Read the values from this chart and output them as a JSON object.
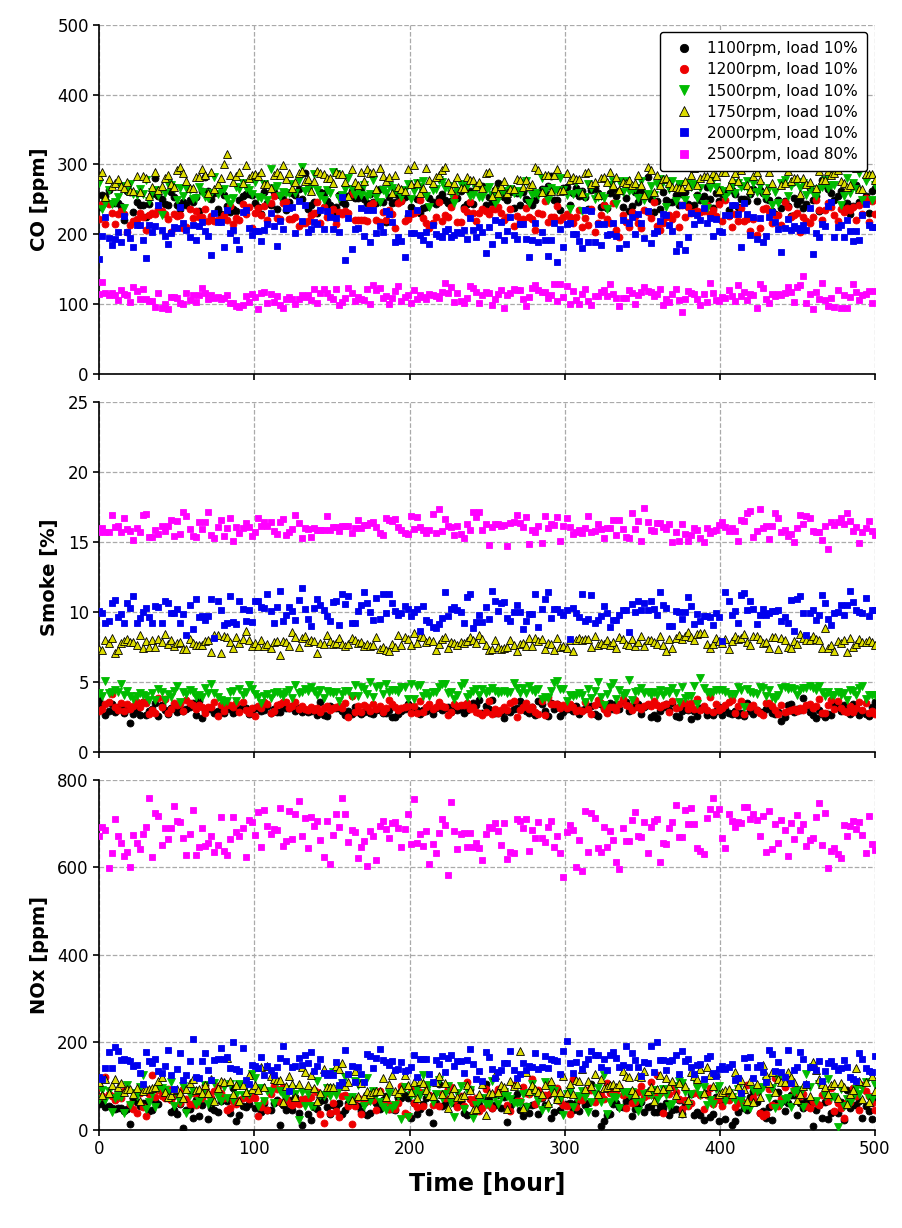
{
  "series": [
    {
      "label": "1100rpm, load 10%",
      "color": "#000000",
      "marker": "o",
      "markersize": 5,
      "CO_mean": 250,
      "CO_std": 12,
      "Smoke_mean": 3.0,
      "Smoke_std": 0.3,
      "NOx_mean": 55,
      "NOx_std": 18
    },
    {
      "label": "1200rpm, load 10%",
      "color": "#EE0000",
      "marker": "o",
      "markersize": 5,
      "CO_mean": 225,
      "CO_std": 12,
      "Smoke_mean": 3.2,
      "Smoke_std": 0.3,
      "NOx_mean": 70,
      "NOx_std": 20
    },
    {
      "label": "1500rpm, load 10%",
      "color": "#00BB00",
      "marker": "v",
      "markersize": 6,
      "CO_mean": 262,
      "CO_std": 12,
      "Smoke_mean": 4.3,
      "Smoke_std": 0.35,
      "NOx_mean": 80,
      "NOx_std": 22
    },
    {
      "label": "1750rpm, load 10%",
      "color": "#DDDD00",
      "marker": "^",
      "markersize": 6,
      "CO_mean": 278,
      "CO_std": 12,
      "Smoke_mean": 7.8,
      "Smoke_std": 0.35,
      "NOx_mean": 100,
      "NOx_std": 22
    },
    {
      "label": "2000rpm, load 10%",
      "color": "#0000EE",
      "marker": "s",
      "markersize": 5,
      "CO_mean": 208,
      "CO_std": 18,
      "Smoke_mean": 10.0,
      "Smoke_std": 0.7,
      "NOx_mean": 148,
      "NOx_std": 22
    },
    {
      "label": "2500rpm, load 80%",
      "color": "#FF00FF",
      "marker": "s",
      "markersize": 5,
      "CO_mean": 113,
      "CO_std": 9,
      "Smoke_mean": 16.1,
      "Smoke_std": 0.55,
      "NOx_mean": 680,
      "NOx_std": 38
    }
  ],
  "n_points": 250,
  "x_max": 500,
  "CO_ylim": [
    0,
    500
  ],
  "CO_yticks": [
    0,
    100,
    200,
    300,
    400,
    500
  ],
  "Smoke_ylim": [
    0,
    25
  ],
  "Smoke_yticks": [
    0,
    5,
    10,
    15,
    20,
    25
  ],
  "NOx_ylim": [
    0,
    800
  ],
  "NOx_yticks": [
    0,
    200,
    400,
    600,
    800
  ],
  "xlabel": "Time [hour]",
  "ylabel_CO": "CO [ppm]",
  "ylabel_Smoke": "Smoke [%]",
  "ylabel_NOx": "NOx [ppm]",
  "background_color": "#FFFFFF",
  "grid_color": "#AAAAAA",
  "label_fontsize": 14,
  "tick_fontsize": 12,
  "legend_fontsize": 11,
  "xlabel_fontsize": 17,
  "xticks": [
    0,
    100,
    200,
    300,
    400,
    500
  ]
}
